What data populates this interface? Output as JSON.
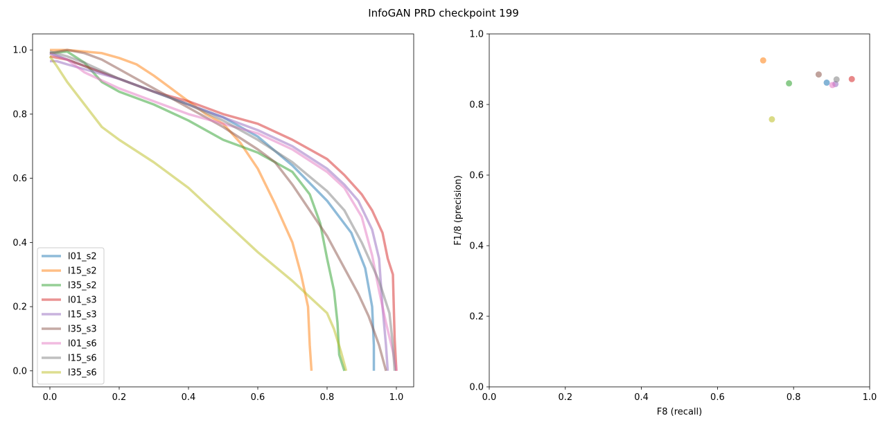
{
  "figure_title": "InfoGAN PRD checkpoint 199",
  "chart_data": [
    {
      "type": "line",
      "title": "",
      "xlabel": "",
      "ylabel": "",
      "xlim": [
        -0.05,
        1.05
      ],
      "ylim": [
        -0.05,
        1.05
      ],
      "xticks": [
        "0.0",
        "0.2",
        "0.4",
        "0.6",
        "0.8",
        "1.0"
      ],
      "yticks": [
        "0.0",
        "0.2",
        "0.4",
        "0.6",
        "0.8",
        "1.0"
      ],
      "grid": false,
      "legend_position": "lower-left",
      "series": [
        {
          "name": "l01_s2",
          "color": "#1f77b4",
          "points": [
            [
              0.0,
              0.99
            ],
            [
              0.05,
              0.97
            ],
            [
              0.1,
              0.95
            ],
            [
              0.2,
              0.91
            ],
            [
              0.3,
              0.87
            ],
            [
              0.4,
              0.83
            ],
            [
              0.5,
              0.79
            ],
            [
              0.6,
              0.73
            ],
            [
              0.7,
              0.64
            ],
            [
              0.8,
              0.53
            ],
            [
              0.87,
              0.43
            ],
            [
              0.91,
              0.32
            ],
            [
              0.93,
              0.2
            ],
            [
              0.935,
              0.08
            ],
            [
              0.935,
              0.0
            ]
          ]
        },
        {
          "name": "l15_s2",
          "color": "#ff7f0e",
          "points": [
            [
              0.0,
              1.0
            ],
            [
              0.05,
              1.0
            ],
            [
              0.1,
              0.995
            ],
            [
              0.15,
              0.99
            ],
            [
              0.2,
              0.975
            ],
            [
              0.25,
              0.955
            ],
            [
              0.3,
              0.92
            ],
            [
              0.35,
              0.88
            ],
            [
              0.4,
              0.84
            ],
            [
              0.45,
              0.8
            ],
            [
              0.5,
              0.77
            ],
            [
              0.55,
              0.71
            ],
            [
              0.6,
              0.63
            ],
            [
              0.65,
              0.52
            ],
            [
              0.7,
              0.4
            ],
            [
              0.725,
              0.3
            ],
            [
              0.745,
              0.2
            ],
            [
              0.75,
              0.08
            ],
            [
              0.755,
              0.0
            ]
          ]
        },
        {
          "name": "l35_s2",
          "color": "#2ca02c",
          "points": [
            [
              0.0,
              0.99
            ],
            [
              0.05,
              0.995
            ],
            [
              0.1,
              0.96
            ],
            [
              0.15,
              0.9
            ],
            [
              0.2,
              0.87
            ],
            [
              0.3,
              0.83
            ],
            [
              0.4,
              0.78
            ],
            [
              0.5,
              0.72
            ],
            [
              0.6,
              0.68
            ],
            [
              0.7,
              0.62
            ],
            [
              0.75,
              0.55
            ],
            [
              0.78,
              0.46
            ],
            [
              0.8,
              0.35
            ],
            [
              0.82,
              0.25
            ],
            [
              0.83,
              0.15
            ],
            [
              0.835,
              0.05
            ],
            [
              0.85,
              0.0
            ]
          ]
        },
        {
          "name": "l01_s3",
          "color": "#d62728",
          "points": [
            [
              0.0,
              0.98
            ],
            [
              0.05,
              0.97
            ],
            [
              0.1,
              0.95
            ],
            [
              0.2,
              0.91
            ],
            [
              0.3,
              0.87
            ],
            [
              0.4,
              0.84
            ],
            [
              0.5,
              0.8
            ],
            [
              0.6,
              0.77
            ],
            [
              0.7,
              0.72
            ],
            [
              0.8,
              0.66
            ],
            [
              0.85,
              0.61
            ],
            [
              0.9,
              0.55
            ],
            [
              0.93,
              0.5
            ],
            [
              0.96,
              0.43
            ],
            [
              0.975,
              0.35
            ],
            [
              0.99,
              0.3
            ],
            [
              0.995,
              0.1
            ],
            [
              1.0,
              0.0
            ]
          ]
        },
        {
          "name": "l15_s3",
          "color": "#9467bd",
          "points": [
            [
              0.0,
              0.965
            ],
            [
              0.02,
              0.965
            ],
            [
              0.05,
              0.955
            ],
            [
              0.1,
              0.94
            ],
            [
              0.2,
              0.91
            ],
            [
              0.3,
              0.87
            ],
            [
              0.4,
              0.83
            ],
            [
              0.5,
              0.79
            ],
            [
              0.6,
              0.75
            ],
            [
              0.7,
              0.7
            ],
            [
              0.8,
              0.63
            ],
            [
              0.85,
              0.58
            ],
            [
              0.89,
              0.53
            ],
            [
              0.93,
              0.44
            ],
            [
              0.95,
              0.35
            ],
            [
              0.96,
              0.2
            ],
            [
              0.97,
              0.08
            ],
            [
              0.975,
              0.0
            ]
          ]
        },
        {
          "name": "l35_s3",
          "color": "#8c564b",
          "points": [
            [
              0.0,
              0.99
            ],
            [
              0.05,
              1.0
            ],
            [
              0.1,
              0.99
            ],
            [
              0.15,
              0.97
            ],
            [
              0.2,
              0.94
            ],
            [
              0.3,
              0.88
            ],
            [
              0.4,
              0.82
            ],
            [
              0.5,
              0.76
            ],
            [
              0.6,
              0.69
            ],
            [
              0.65,
              0.65
            ],
            [
              0.7,
              0.58
            ],
            [
              0.75,
              0.5
            ],
            [
              0.8,
              0.42
            ],
            [
              0.85,
              0.32
            ],
            [
              0.89,
              0.24
            ],
            [
              0.92,
              0.17
            ],
            [
              0.95,
              0.08
            ],
            [
              0.97,
              0.0
            ]
          ]
        },
        {
          "name": "l01_s6",
          "color": "#e377c2",
          "points": [
            [
              0.0,
              0.99
            ],
            [
              0.05,
              0.97
            ],
            [
              0.1,
              0.93
            ],
            [
              0.2,
              0.88
            ],
            [
              0.3,
              0.84
            ],
            [
              0.4,
              0.8
            ],
            [
              0.5,
              0.77
            ],
            [
              0.6,
              0.74
            ],
            [
              0.7,
              0.69
            ],
            [
              0.8,
              0.62
            ],
            [
              0.85,
              0.57
            ],
            [
              0.9,
              0.48
            ],
            [
              0.93,
              0.36
            ],
            [
              0.95,
              0.25
            ],
            [
              0.97,
              0.15
            ],
            [
              0.99,
              0.06
            ],
            [
              1.0,
              0.0
            ]
          ]
        },
        {
          "name": "l15_s6",
          "color": "#7f7f7f",
          "points": [
            [
              0.0,
              0.995
            ],
            [
              0.05,
              0.98
            ],
            [
              0.1,
              0.96
            ],
            [
              0.2,
              0.91
            ],
            [
              0.3,
              0.87
            ],
            [
              0.4,
              0.83
            ],
            [
              0.5,
              0.78
            ],
            [
              0.6,
              0.72
            ],
            [
              0.7,
              0.65
            ],
            [
              0.8,
              0.56
            ],
            [
              0.85,
              0.5
            ],
            [
              0.9,
              0.4
            ],
            [
              0.95,
              0.28
            ],
            [
              0.98,
              0.18
            ],
            [
              0.99,
              0.08
            ],
            [
              0.995,
              0.0
            ]
          ]
        },
        {
          "name": "l35_s6",
          "color": "#bcbd22",
          "points": [
            [
              0.0,
              0.98
            ],
            [
              0.02,
              0.95
            ],
            [
              0.05,
              0.9
            ],
            [
              0.1,
              0.83
            ],
            [
              0.15,
              0.76
            ],
            [
              0.2,
              0.72
            ],
            [
              0.3,
              0.65
            ],
            [
              0.4,
              0.57
            ],
            [
              0.5,
              0.47
            ],
            [
              0.6,
              0.37
            ],
            [
              0.7,
              0.28
            ],
            [
              0.75,
              0.23
            ],
            [
              0.8,
              0.18
            ],
            [
              0.82,
              0.13
            ],
            [
              0.84,
              0.06
            ],
            [
              0.85,
              0.02
            ],
            [
              0.855,
              0.0
            ]
          ]
        }
      ]
    },
    {
      "type": "scatter",
      "title": "",
      "xlabel": "F8 (recall)",
      "ylabel": "F1/8 (precision)",
      "xlim": [
        0.0,
        1.0
      ],
      "ylim": [
        0.0,
        1.0
      ],
      "xticks": [
        "0.0",
        "0.2",
        "0.4",
        "0.6",
        "0.8",
        "1.0"
      ],
      "yticks": [
        "0.0",
        "0.2",
        "0.4",
        "0.6",
        "0.8",
        "1.0"
      ],
      "grid": false,
      "points": [
        {
          "name": "l01_s2",
          "x": 0.887,
          "y": 0.862,
          "color": "#1f77b4"
        },
        {
          "name": "l15_s2",
          "x": 0.72,
          "y": 0.925,
          "color": "#ff7f0e"
        },
        {
          "name": "l35_s2",
          "x": 0.788,
          "y": 0.86,
          "color": "#2ca02c"
        },
        {
          "name": "l01_s3",
          "x": 0.953,
          "y": 0.872,
          "color": "#d62728"
        },
        {
          "name": "l15_s3",
          "x": 0.91,
          "y": 0.858,
          "color": "#9467bd"
        },
        {
          "name": "l35_s3",
          "x": 0.866,
          "y": 0.885,
          "color": "#8c564b"
        },
        {
          "name": "l01_s6",
          "x": 0.902,
          "y": 0.855,
          "color": "#e377c2"
        },
        {
          "name": "l15_s6",
          "x": 0.913,
          "y": 0.871,
          "color": "#7f7f7f"
        },
        {
          "name": "l35_s6",
          "x": 0.743,
          "y": 0.758,
          "color": "#bcbd22"
        }
      ]
    }
  ]
}
